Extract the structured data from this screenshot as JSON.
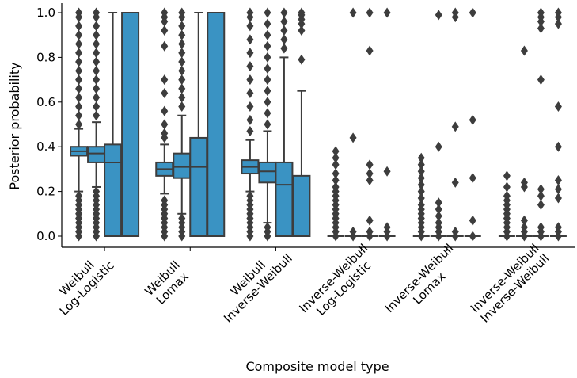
{
  "chart_data": {
    "type": "boxplot",
    "title": "",
    "xlabel": "Composite model type",
    "ylabel": "Posterior probability",
    "ylim": [
      -0.05,
      1.04
    ],
    "yticks": [
      0.0,
      0.2,
      0.4,
      0.6,
      0.8,
      1.0
    ],
    "ytick_labels": [
      "0.0",
      "0.2",
      "0.4",
      "0.6",
      "0.8",
      "1.0"
    ],
    "grid": false,
    "legend": "none",
    "box_color": "#3a93c3",
    "line_color": "#3d3d3d",
    "groups": [
      {
        "label_lines": [
          "Weibull",
          "Log-Logistic"
        ],
        "boxes": [
          {
            "whislo": 0.2,
            "q1": 0.36,
            "med": 0.38,
            "q3": 0.4,
            "whishi": 0.48,
            "has_whiskers": true,
            "fliers": [
              0.0,
              0.02,
              0.04,
              0.06,
              0.08,
              0.1,
              0.12,
              0.14,
              0.16,
              0.18,
              0.5,
              0.54,
              0.58,
              0.62,
              0.66,
              0.7,
              0.74,
              0.78,
              0.82,
              0.86,
              0.9,
              0.94,
              0.98,
              1.0
            ]
          },
          {
            "whislo": 0.22,
            "q1": 0.33,
            "med": 0.37,
            "q3": 0.4,
            "whishi": 0.51,
            "has_whiskers": true,
            "fliers": [
              0.0,
              0.02,
              0.04,
              0.06,
              0.08,
              0.1,
              0.12,
              0.14,
              0.16,
              0.18,
              0.2,
              0.54,
              0.58,
              0.62,
              0.66,
              0.7,
              0.74,
              0.78,
              0.82,
              0.86,
              0.9,
              0.94,
              0.98,
              1.0
            ]
          },
          {
            "whislo": 0.0,
            "q1": 0.0,
            "med": 0.33,
            "q3": 0.41,
            "whishi": 1.0,
            "has_whiskers": true,
            "fliers": []
          },
          {
            "whislo": 0.0,
            "q1": 0.0,
            "med": 1.0,
            "q3": 1.0,
            "whishi": 1.0,
            "has_whiskers": false,
            "fliers": []
          }
        ]
      },
      {
        "label_lines": [
          "Weibull",
          "Lomax"
        ],
        "boxes": [
          {
            "whislo": 0.19,
            "q1": 0.27,
            "med": 0.3,
            "q3": 0.33,
            "whishi": 0.41,
            "has_whiskers": true,
            "fliers": [
              0.0,
              0.02,
              0.04,
              0.06,
              0.08,
              0.1,
              0.12,
              0.14,
              0.16,
              0.44,
              0.46,
              0.5,
              0.56,
              0.64,
              0.7,
              0.85,
              0.92,
              0.96,
              0.98,
              1.0
            ]
          },
          {
            "whislo": 0.1,
            "q1": 0.26,
            "med": 0.31,
            "q3": 0.37,
            "whishi": 0.54,
            "has_whiskers": true,
            "fliers": [
              0.0,
              0.02,
              0.04,
              0.06,
              0.08,
              0.58,
              0.62,
              0.66,
              0.7,
              0.74,
              0.78,
              0.82,
              0.86,
              0.9,
              0.94,
              0.98,
              1.0
            ]
          },
          {
            "whislo": 0.0,
            "q1": 0.0,
            "med": 0.31,
            "q3": 0.44,
            "whishi": 1.0,
            "has_whiskers": true,
            "fliers": []
          },
          {
            "whislo": 0.0,
            "q1": 0.0,
            "med": 1.0,
            "q3": 1.0,
            "whishi": 1.0,
            "has_whiskers": false,
            "fliers": []
          }
        ]
      },
      {
        "label_lines": [
          "Weibull",
          "Inverse-Weibull"
        ],
        "boxes": [
          {
            "whislo": 0.2,
            "q1": 0.28,
            "med": 0.31,
            "q3": 0.34,
            "whishi": 0.43,
            "has_whiskers": true,
            "fliers": [
              0.0,
              0.02,
              0.04,
              0.06,
              0.08,
              0.1,
              0.12,
              0.14,
              0.16,
              0.18,
              0.47,
              0.52,
              0.58,
              0.64,
              0.7,
              0.76,
              0.82,
              0.88,
              0.94,
              0.98,
              1.0
            ]
          },
          {
            "whislo": 0.06,
            "q1": 0.24,
            "med": 0.29,
            "q3": 0.33,
            "whishi": 0.47,
            "has_whiskers": true,
            "fliers": [
              0.0,
              0.02,
              0.04,
              0.5,
              0.55,
              0.6,
              0.65,
              0.7,
              0.75,
              0.8,
              0.85,
              0.9,
              0.95,
              1.0
            ]
          },
          {
            "whislo": 0.0,
            "q1": 0.0,
            "med": 0.23,
            "q3": 0.33,
            "whishi": 0.8,
            "has_whiskers": true,
            "fliers": [
              0.84,
              0.88,
              0.92,
              0.96,
              1.0
            ]
          },
          {
            "whislo": 0.0,
            "q1": 0.0,
            "med": 0.0,
            "q3": 0.27,
            "whishi": 0.65,
            "has_whiskers": true,
            "fliers": [
              0.79,
              0.92,
              0.95,
              0.97,
              0.99,
              1.0
            ]
          }
        ]
      },
      {
        "label_lines": [
          "Inverse-Weibull",
          "Log-Logistic"
        ],
        "boxes": [
          {
            "whislo": 0.0,
            "q1": 0.0,
            "med": 0.0,
            "q3": 0.0,
            "whishi": 0.0,
            "has_whiskers": false,
            "fliers": [
              0.0,
              0.02,
              0.04,
              0.06,
              0.08,
              0.1,
              0.12,
              0.14,
              0.16,
              0.18,
              0.2,
              0.22,
              0.25,
              0.28,
              0.32,
              0.35,
              0.38
            ]
          },
          {
            "whislo": 0.0,
            "q1": 0.0,
            "med": 0.0,
            "q3": 0.0,
            "whishi": 0.0,
            "has_whiskers": false,
            "fliers": [
              0.0,
              0.02,
              0.44,
              1.0
            ]
          },
          {
            "whislo": 0.0,
            "q1": 0.0,
            "med": 0.0,
            "q3": 0.0,
            "whishi": 0.0,
            "has_whiskers": false,
            "fliers": [
              0.0,
              0.02,
              0.07,
              0.25,
              0.28,
              0.32,
              0.83,
              1.0
            ]
          },
          {
            "whislo": 0.0,
            "q1": 0.0,
            "med": 0.0,
            "q3": 0.0,
            "whishi": 0.0,
            "has_whiskers": false,
            "fliers": [
              0.0,
              0.02,
              0.04,
              0.29,
              1.0
            ]
          }
        ]
      },
      {
        "label_lines": [
          "Inverse-Weibull",
          "Lomax"
        ],
        "boxes": [
          {
            "whislo": 0.0,
            "q1": 0.0,
            "med": 0.0,
            "q3": 0.0,
            "whishi": 0.0,
            "has_whiskers": false,
            "fliers": [
              0.0,
              0.02,
              0.04,
              0.06,
              0.08,
              0.1,
              0.12,
              0.14,
              0.17,
              0.2,
              0.23,
              0.26,
              0.29,
              0.32,
              0.35
            ]
          },
          {
            "whislo": 0.0,
            "q1": 0.0,
            "med": 0.0,
            "q3": 0.0,
            "whishi": 0.0,
            "has_whiskers": false,
            "fliers": [
              0.0,
              0.02,
              0.04,
              0.06,
              0.09,
              0.12,
              0.15,
              0.4,
              0.99
            ]
          },
          {
            "whislo": 0.0,
            "q1": 0.0,
            "med": 0.0,
            "q3": 0.0,
            "whishi": 0.0,
            "has_whiskers": false,
            "fliers": [
              0.0,
              0.02,
              0.24,
              0.49,
              0.98,
              1.0
            ]
          },
          {
            "whislo": 0.0,
            "q1": 0.0,
            "med": 0.0,
            "q3": 0.0,
            "whishi": 0.0,
            "has_whiskers": false,
            "fliers": [
              0.0,
              0.07,
              0.26,
              0.52,
              1.0
            ]
          }
        ]
      },
      {
        "label_lines": [
          "Inverse-Weibull",
          "Inverse-Weibull"
        ],
        "boxes": [
          {
            "whislo": 0.0,
            "q1": 0.0,
            "med": 0.0,
            "q3": 0.0,
            "whishi": 0.0,
            "has_whiskers": false,
            "fliers": [
              0.0,
              0.02,
              0.04,
              0.06,
              0.08,
              0.1,
              0.12,
              0.14,
              0.16,
              0.18,
              0.22,
              0.27
            ]
          },
          {
            "whislo": 0.0,
            "q1": 0.0,
            "med": 0.0,
            "q3": 0.0,
            "whishi": 0.0,
            "has_whiskers": false,
            "fliers": [
              0.0,
              0.02,
              0.04,
              0.07,
              0.22,
              0.24,
              0.83
            ]
          },
          {
            "whislo": 0.0,
            "q1": 0.0,
            "med": 0.0,
            "q3": 0.0,
            "whishi": 0.0,
            "has_whiskers": false,
            "fliers": [
              0.0,
              0.02,
              0.04,
              0.14,
              0.18,
              0.21,
              0.7,
              0.93,
              0.96,
              0.98,
              1.0
            ]
          },
          {
            "whislo": 0.0,
            "q1": 0.0,
            "med": 0.0,
            "q3": 0.0,
            "whishi": 0.0,
            "has_whiskers": false,
            "fliers": [
              0.0,
              0.02,
              0.04,
              0.17,
              0.21,
              0.25,
              0.4,
              0.58,
              0.95,
              0.98,
              1.0
            ]
          }
        ]
      }
    ]
  }
}
